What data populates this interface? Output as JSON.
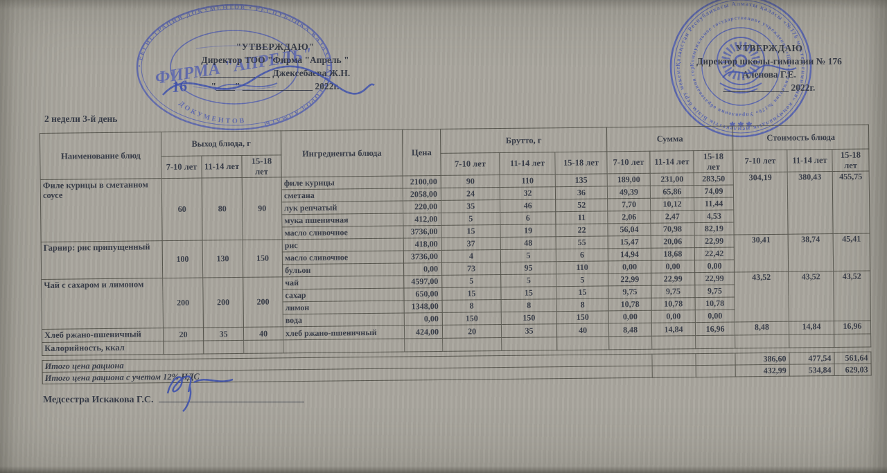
{
  "approvals": {
    "left": {
      "title": "\"УТВЕРЖДАЮ\"",
      "line2": "Директор ТОО \"Фирма \"Апрель \"",
      "sig_line": "_______________ Джексебаева Ж.Н.",
      "date_line": "\"____\" _______________ 2022г.",
      "handwritten_day": "16"
    },
    "right": {
      "title": "УТВЕРЖДАЮ",
      "line2": "Директор школы-гимназии  № 176",
      "sig_line": "Аленова Г.Е.",
      "date_line": "______________ 2022г."
    }
  },
  "stamps": {
    "left": {
      "center": "ФИРМА \"АПРЕЛЬ\"",
      "ring": "• РЕГИСТРАЦИЯ ДОКУМЕНТОВ • РЕСПУБЛИКА КАЗАХСТАН • ГОРОД АЛМАТЫ",
      "inner_arc": "ДОКУМЕНТОВ"
    },
    "right": {
      "ring_outer": "Қазақстан Республикасы Алматы қаласы «№176 мектеп-гимназия» коммуналдық мемлекеттік Білім беру мекемесі",
      "ring_inner": "Коммунальное государственное учреждение «Школа-гимназия №176» Управления образования города Алматы",
      "stars": "✱ ✱ ✱"
    }
  },
  "day_label": "2 недели 3-й день",
  "table": {
    "headers": {
      "name": "Наименование блюд",
      "out_group": "Выход блюда, г",
      "ingredients": "Ингредиенты блюда",
      "price": "Цена",
      "brutto_group": "Брутто, г",
      "sum_group": "Сумма",
      "cost_group": "Стоимость блюда",
      "ages": [
        "7-10 лет",
        "11-14 лет",
        "15-18 лет"
      ]
    },
    "dishes": [
      {
        "name": "Филе курицы в сметанном соусе",
        "out": [
          "60",
          "80",
          "90"
        ],
        "cost": [
          "304,19",
          "380,43",
          "455,75"
        ],
        "ingredients": [
          {
            "name": "филе курицы",
            "price": "2100,00",
            "brutto": [
              "90",
              "110",
              "135"
            ],
            "sum": [
              "189,00",
              "231,00",
              "283,50"
            ]
          },
          {
            "name": "сметана",
            "price": "2058,00",
            "brutto": [
              "24",
              "32",
              "36"
            ],
            "sum": [
              "49,39",
              "65,86",
              "74,09"
            ]
          },
          {
            "name": "лук репчатый",
            "price": "220,00",
            "brutto": [
              "35",
              "46",
              "52"
            ],
            "sum": [
              "7,70",
              "10,12",
              "11,44"
            ]
          },
          {
            "name": "мука пшеничная",
            "price": "412,00",
            "brutto": [
              "5",
              "6",
              "11"
            ],
            "sum": [
              "2,06",
              "2,47",
              "4,53"
            ]
          },
          {
            "name": "масло сливочное",
            "price": "3736,00",
            "brutto": [
              "15",
              "19",
              "22"
            ],
            "sum": [
              "56,04",
              "70,98",
              "82,19"
            ]
          }
        ]
      },
      {
        "name": "Гарнир: рис припущенный",
        "out": [
          "100",
          "130",
          "150"
        ],
        "cost": [
          "30,41",
          "38,74",
          "45,41"
        ],
        "ingredients": [
          {
            "name": "рис",
            "price": "418,00",
            "brutto": [
              "37",
              "48",
              "55"
            ],
            "sum": [
              "15,47",
              "20,06",
              "22,99"
            ]
          },
          {
            "name": "масло сливочное",
            "price": "3736,00",
            "brutto": [
              "4",
              "5",
              "6"
            ],
            "sum": [
              "14,94",
              "18,68",
              "22,42"
            ]
          },
          {
            "name": "бульон",
            "price": "0,00",
            "brutto": [
              "73",
              "95",
              "110"
            ],
            "sum": [
              "0,00",
              "0,00",
              "0,00"
            ]
          }
        ]
      },
      {
        "name": "Чай с сахаром и лимоном",
        "out": [
          "200",
          "200",
          "200"
        ],
        "cost": [
          "43,52",
          "43,52",
          "43,52"
        ],
        "ingredients": [
          {
            "name": "чай",
            "price": "4597,00",
            "brutto": [
              "5",
              "5",
              "5"
            ],
            "sum": [
              "22,99",
              "22,99",
              "22,99"
            ]
          },
          {
            "name": "сахар",
            "price": "650,00",
            "brutto": [
              "15",
              "15",
              "15"
            ],
            "sum": [
              "9,75",
              "9,75",
              "9,75"
            ]
          },
          {
            "name": "лимон",
            "price": "1348,00",
            "brutto": [
              "8",
              "8",
              "8"
            ],
            "sum": [
              "10,78",
              "10,78",
              "10,78"
            ]
          },
          {
            "name": "вода",
            "price": "0,00",
            "brutto": [
              "150",
              "150",
              "150"
            ],
            "sum": [
              "0,00",
              "0,00",
              "0,00"
            ]
          }
        ]
      },
      {
        "name": "Хлеб ржано-пшеничный",
        "out": [
          "20",
          "35",
          "40"
        ],
        "cost": [
          "8,48",
          "14,84",
          "16,96"
        ],
        "ingredients": [
          {
            "name": "хлеб ржано-пшеничный",
            "price": "424,00",
            "brutto": [
              "20",
              "35",
              "40"
            ],
            "sum": [
              "8,48",
              "14,84",
              "16,96"
            ]
          }
        ]
      }
    ],
    "calories_label": "Калорийность, ккал"
  },
  "totals": [
    {
      "label": "Итого цена рациона",
      "values": [
        "386,60",
        "477,54",
        "561,64"
      ]
    },
    {
      "label": "Итого цена рациона с учетом 12% НДС",
      "values": [
        "432,99",
        "534,84",
        "629,03"
      ]
    }
  ],
  "footer": {
    "nurse_label": "Медсестра Искакова Г.С."
  }
}
